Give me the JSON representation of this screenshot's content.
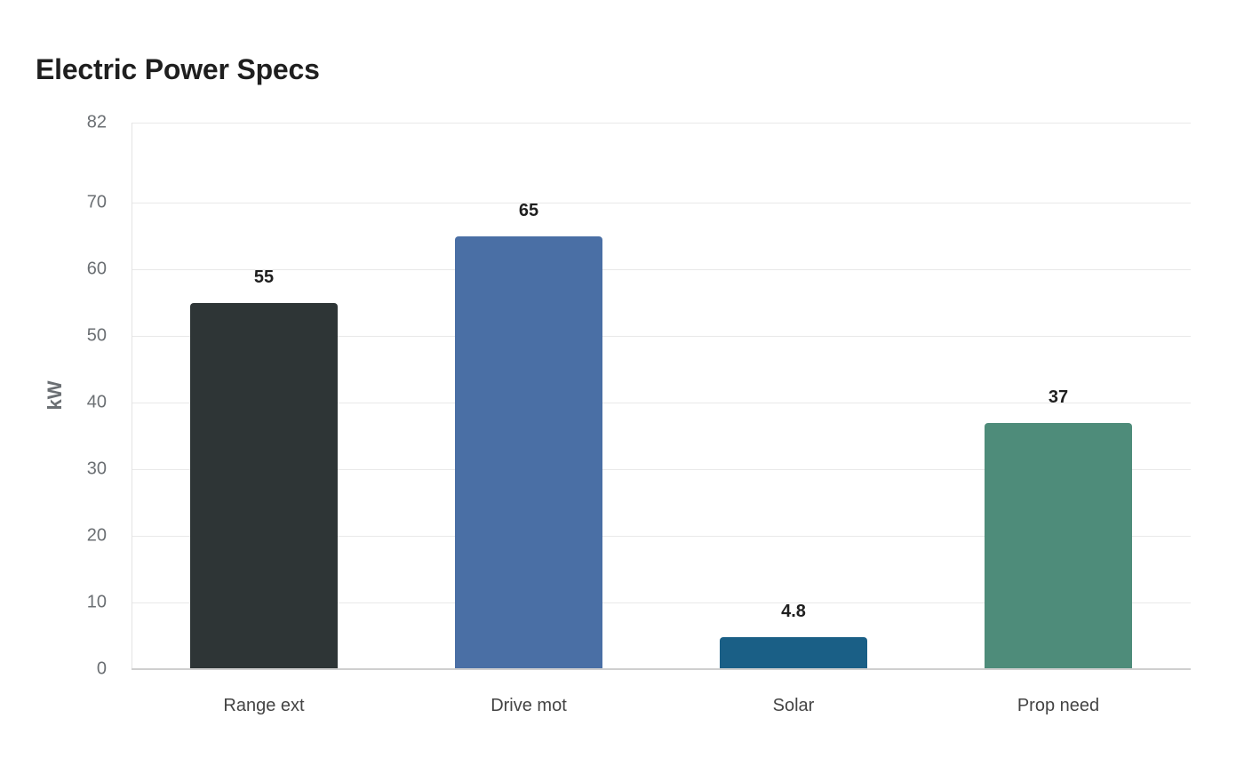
{
  "chart_data": {
    "type": "bar",
    "title": "Electric Power Specs",
    "xlabel": "",
    "ylabel": "kW",
    "categories": [
      "Range ext",
      "Drive mot",
      "Solar",
      "Prop need"
    ],
    "values": [
      55,
      65,
      4.8,
      37
    ],
    "value_labels": [
      "55",
      "65",
      "4.8",
      "37"
    ],
    "colors": [
      "#2e3536",
      "#4a6fa5",
      "#1a5f86",
      "#4e8c7a"
    ],
    "ylim": [
      0,
      82
    ],
    "yticks": [
      0,
      10,
      20,
      30,
      40,
      50,
      60,
      70,
      82
    ],
    "grid": true,
    "legend": null
  }
}
